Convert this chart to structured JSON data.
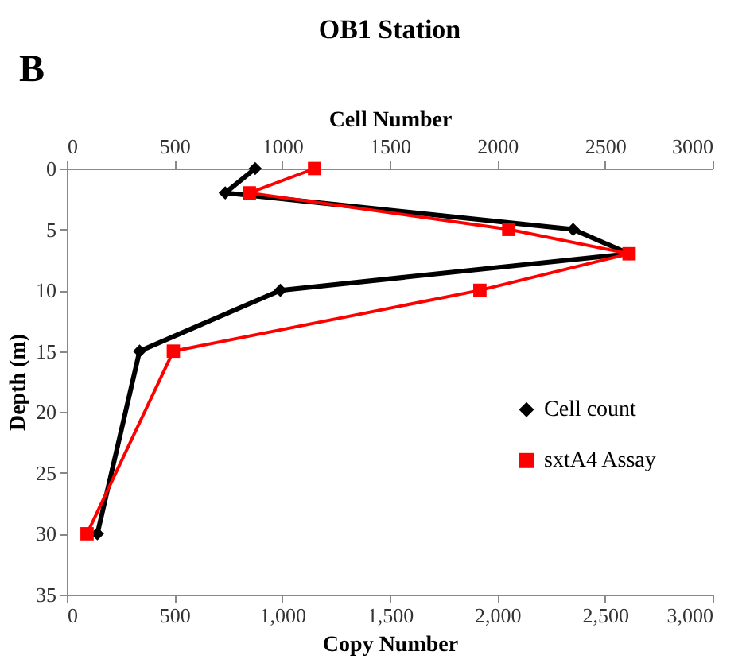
{
  "chart_data": {
    "type": "line",
    "title": "OB1 Station",
    "annotations": [
      "B"
    ],
    "xlabel": "Copy Number",
    "x2label": "Cell Number",
    "ylabel": "Depth (m)",
    "xlim": [
      0,
      3000
    ],
    "xticks": [
      0,
      500,
      {
        "value": 1000,
        "label": "1,000"
      },
      {
        "value": 1500,
        "label": "1,500"
      },
      {
        "value": 2000,
        "label": "2,000"
      },
      {
        "value": 2500,
        "label": "2,500"
      },
      {
        "value": 3000,
        "label": "3,000"
      }
    ],
    "x2lim": [
      0,
      3000
    ],
    "x2ticks": [
      0,
      500,
      1000,
      1500,
      2000,
      2500,
      3000
    ],
    "ylim": [
      35,
      0
    ],
    "yticks": [
      0,
      5,
      10,
      15,
      20,
      25,
      30,
      35
    ],
    "grid": false,
    "legend": "right",
    "series": [
      {
        "name": "Cell count",
        "color": "#000000",
        "axis": "x2",
        "marker": "diamond",
        "x": [
          875,
          736,
          2352,
          2612,
          992,
          338,
          142
        ],
        "values": [
          0,
          2,
          5,
          7,
          10,
          15,
          30
        ]
      },
      {
        "name": "sxtA4 Assay",
        "color": "#ff0000",
        "marker": "square",
        "x": [
          1151,
          848,
          2053,
          2612,
          1919,
          495,
          94
        ],
        "values": [
          0,
          2,
          5,
          7,
          10,
          15,
          30
        ]
      }
    ]
  }
}
